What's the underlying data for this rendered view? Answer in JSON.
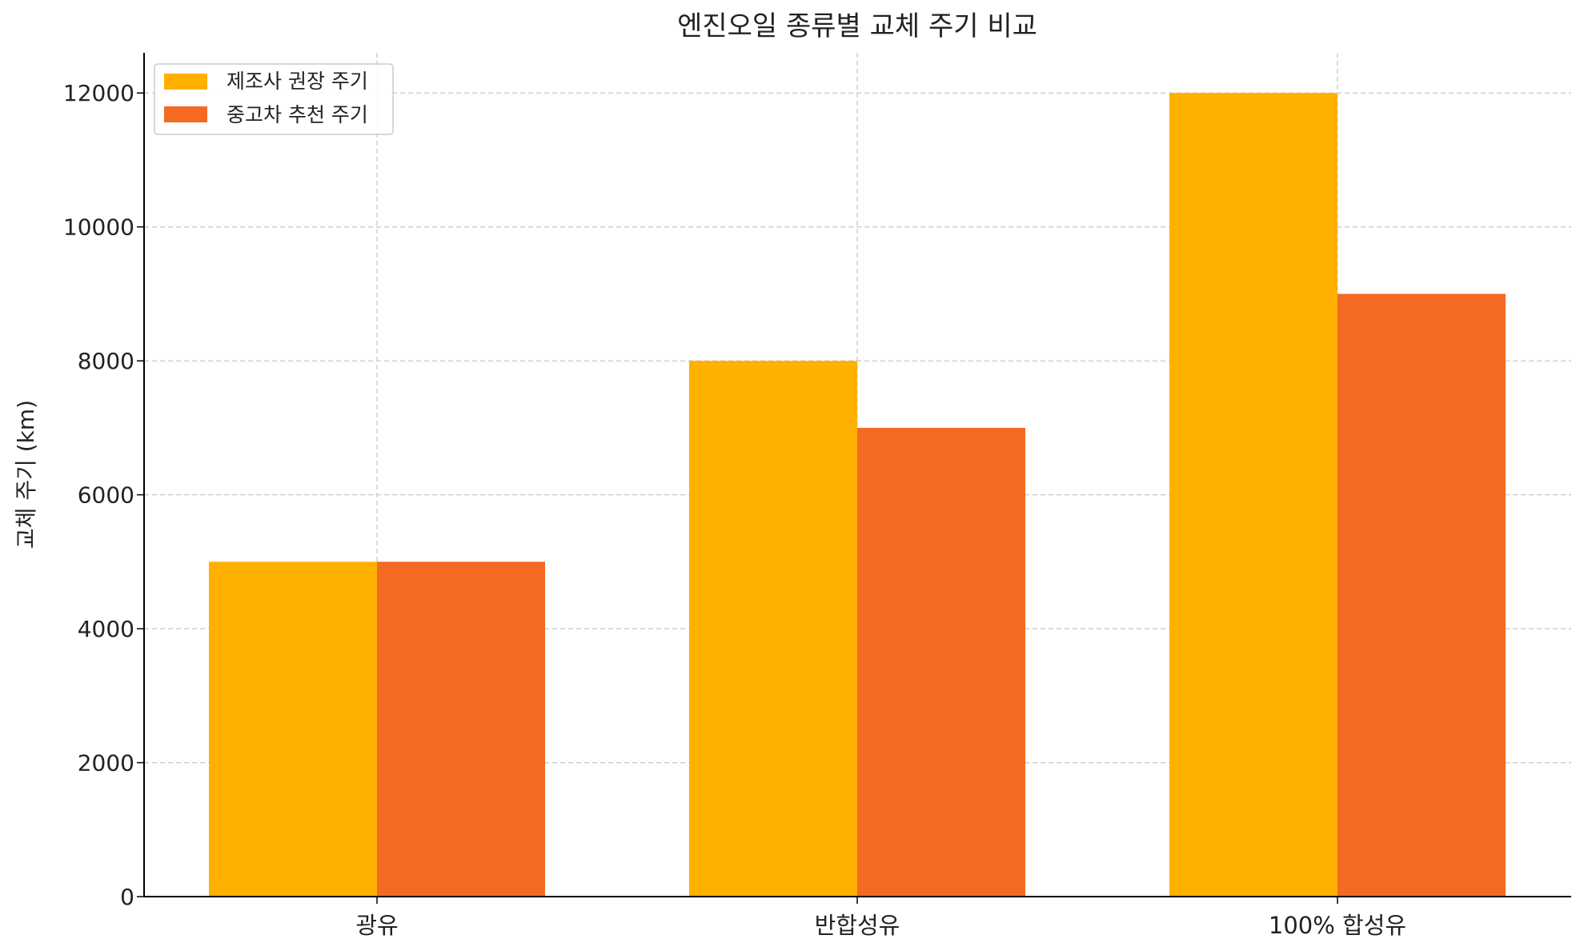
{
  "chart_data": {
    "type": "bar",
    "title": "엔진오일 종류별 교체 주기 비교",
    "xlabel": "",
    "ylabel": "교체 주기 (km)",
    "categories": [
      "광유",
      "반합성유",
      "100% 합성유"
    ],
    "series": [
      {
        "name": "제조사 권장 주기",
        "values": [
          5000,
          8000,
          12000
        ],
        "color": "#FFB000"
      },
      {
        "name": "중고차 추천 주기",
        "values": [
          5000,
          7000,
          9000
        ],
        "color": "#F46A22"
      }
    ],
    "ylim": [
      0,
      12600
    ],
    "yticks": [
      0,
      2000,
      4000,
      6000,
      8000,
      10000,
      12000
    ],
    "grid": true,
    "legend_position": "top-left"
  }
}
